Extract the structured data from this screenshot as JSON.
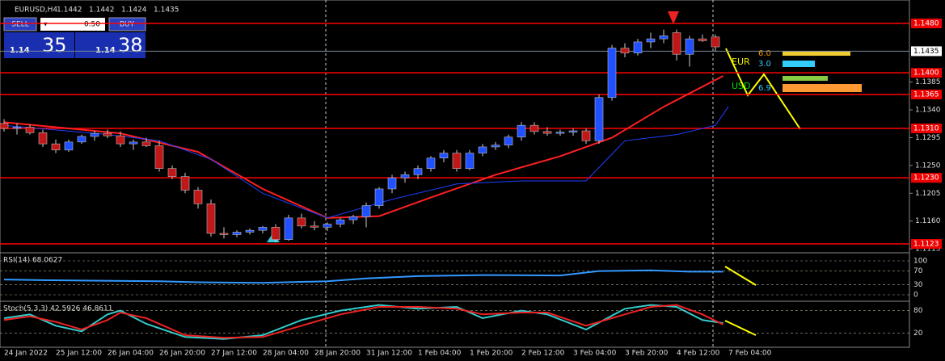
{
  "header": {
    "symbol": "EURUSD,H4",
    "ohlc": [
      1.1442,
      1.1442,
      1.1424,
      1.1435
    ]
  },
  "trade_panel": {
    "sell": "SELL",
    "buy": "BUY",
    "lot": "0.50",
    "bid_big": "1.14",
    "bid_small": "35",
    "ask_big": "1.14",
    "ask_small": "38"
  },
  "strength": {
    "eur": "EUR",
    "usd": "USD",
    "eur_values": [
      "6.0",
      "3.0"
    ],
    "usd_value": "6.9"
  },
  "price_ticks": [
    {
      "value": 1.1385,
      "label": "1.1385"
    },
    {
      "value": 1.134,
      "label": "1.1340"
    },
    {
      "value": 1.1295,
      "label": "1.1295"
    },
    {
      "value": 1.125,
      "label": "1.1250"
    },
    {
      "value": 1.1205,
      "label": "1.1205"
    },
    {
      "value": 1.116,
      "label": "1.1160"
    },
    {
      "value": 1.1115,
      "label": "1.1115"
    }
  ],
  "levels": [
    {
      "value": 1.148,
      "label": "1.1480"
    },
    {
      "value": 1.14,
      "label": "1.1400"
    },
    {
      "value": 1.1365,
      "label": "1.1365"
    },
    {
      "value": 1.131,
      "label": "1.1310"
    },
    {
      "value": 1.123,
      "label": "1.1230"
    },
    {
      "value": 1.1123,
      "label": "1.1123"
    }
  ],
  "current": {
    "value": 1.1435,
    "label": "1.1435"
  },
  "candles": [
    [
      1.1318,
      1.1325,
      1.1305,
      1.131
    ],
    [
      1.131,
      1.1318,
      1.13,
      1.1312
    ],
    [
      1.1312,
      1.1316,
      1.13,
      1.1303
    ],
    [
      1.1303,
      1.1308,
      1.128,
      1.1285
    ],
    [
      1.1285,
      1.1292,
      1.127,
      1.1275
    ],
    [
      1.1275,
      1.1292,
      1.1272,
      1.1288
    ],
    [
      1.1288,
      1.13,
      1.1285,
      1.1297
    ],
    [
      1.1297,
      1.1306,
      1.129,
      1.1302
    ],
    [
      1.1302,
      1.1308,
      1.1294,
      1.1298
    ],
    [
      1.1298,
      1.1305,
      1.128,
      1.1285
    ],
    [
      1.1285,
      1.1292,
      1.1275,
      1.1288
    ],
    [
      1.1288,
      1.1295,
      1.128,
      1.1282
    ],
    [
      1.1282,
      1.129,
      1.124,
      1.1245
    ],
    [
      1.1245,
      1.125,
      1.1228,
      1.1232
    ],
    [
      1.1232,
      1.1238,
      1.1205,
      1.121
    ],
    [
      1.121,
      1.1215,
      1.118,
      1.1188
    ],
    [
      1.1188,
      1.1195,
      1.1135,
      1.114
    ],
    [
      1.114,
      1.115,
      1.1132,
      1.1138
    ],
    [
      1.1138,
      1.1145,
      1.1134,
      1.1142
    ],
    [
      1.1142,
      1.1148,
      1.1138,
      1.1145
    ],
    [
      1.1145,
      1.1152,
      1.114,
      1.115
    ],
    [
      1.115,
      1.1155,
      1.1125,
      1.113
    ],
    [
      1.113,
      1.117,
      1.1128,
      1.1165
    ],
    [
      1.1165,
      1.1172,
      1.1148,
      1.1152
    ],
    [
      1.1152,
      1.116,
      1.1145,
      1.115
    ],
    [
      1.115,
      1.1158,
      1.1144,
      1.1155
    ],
    [
      1.1155,
      1.1165,
      1.115,
      1.1162
    ],
    [
      1.1162,
      1.117,
      1.1155,
      1.1167
    ],
    [
      1.1167,
      1.119,
      1.115,
      1.1185
    ],
    [
      1.1185,
      1.1215,
      1.118,
      1.1212
    ],
    [
      1.1212,
      1.1235,
      1.1205,
      1.123
    ],
    [
      1.123,
      1.124,
      1.1222,
      1.1235
    ],
    [
      1.1235,
      1.125,
      1.1228,
      1.1245
    ],
    [
      1.1245,
      1.1265,
      1.124,
      1.1262
    ],
    [
      1.1262,
      1.1275,
      1.1255,
      1.127
    ],
    [
      1.127,
      1.1275,
      1.124,
      1.1245
    ],
    [
      1.1245,
      1.1275,
      1.1242,
      1.127
    ],
    [
      1.127,
      1.1285,
      1.1265,
      1.128
    ],
    [
      1.128,
      1.1288,
      1.1275,
      1.1283
    ],
    [
      1.1283,
      1.13,
      1.1278,
      1.1296
    ],
    [
      1.1296,
      1.132,
      1.129,
      1.1315
    ],
    [
      1.1315,
      1.132,
      1.13,
      1.1305
    ],
    [
      1.1305,
      1.1312,
      1.1298,
      1.1302
    ],
    [
      1.1302,
      1.1308,
      1.1298,
      1.1304
    ],
    [
      1.1304,
      1.131,
      1.1298,
      1.1306
    ],
    [
      1.1306,
      1.131,
      1.1285,
      1.129
    ],
    [
      1.129,
      1.1365,
      1.1285,
      1.136
    ],
    [
      1.136,
      1.1445,
      1.1355,
      1.144
    ],
    [
      1.144,
      1.1448,
      1.1425,
      1.1432
    ],
    [
      1.1432,
      1.1455,
      1.1428,
      1.145
    ],
    [
      1.145,
      1.1465,
      1.144,
      1.1455
    ],
    [
      1.1455,
      1.147,
      1.1448,
      1.146
    ],
    [
      1.1465,
      1.147,
      1.142,
      1.143
    ],
    [
      1.143,
      1.146,
      1.141,
      1.1455
    ],
    [
      1.1455,
      1.1462,
      1.145,
      1.1452
    ],
    [
      1.1458,
      1.1462,
      1.1435,
      1.1442
    ]
  ],
  "lines": [
    {
      "color": "#ff2020",
      "width": 2,
      "points": [
        [
          0,
          1.132
        ],
        [
          9,
          1.1302
        ],
        [
          15,
          1.1272
        ],
        [
          20,
          1.1212
        ],
        [
          25,
          1.1165
        ],
        [
          29,
          1.1168
        ],
        [
          33,
          1.1198
        ],
        [
          38,
          1.1235
        ],
        [
          43,
          1.1265
        ],
        [
          47,
          1.1295
        ],
        [
          51,
          1.1345
        ],
        [
          55.6,
          1.1395
        ]
      ]
    },
    {
      "color": "#2040ff",
      "width": 1,
      "points": [
        [
          0,
          1.1315
        ],
        [
          8,
          1.13
        ],
        [
          12,
          1.129
        ],
        [
          16,
          1.126
        ],
        [
          20,
          1.1205
        ],
        [
          25,
          1.1165
        ],
        [
          30,
          1.1195
        ],
        [
          35,
          1.122
        ],
        [
          40,
          1.1225
        ],
        [
          45,
          1.1225
        ],
        [
          48,
          1.129
        ],
        [
          52,
          1.13
        ],
        [
          55,
          1.1315
        ],
        [
          56,
          1.1345
        ]
      ]
    }
  ],
  "rsi": {
    "label": "RSI(14) 68.0627",
    "ticks": [
      100,
      70,
      30,
      0
    ],
    "points": [
      [
        0,
        45
      ],
      [
        3,
        43
      ],
      [
        6,
        42
      ],
      [
        12,
        40
      ],
      [
        15,
        37
      ],
      [
        20,
        35
      ],
      [
        25,
        40
      ],
      [
        28,
        48
      ],
      [
        32,
        55
      ],
      [
        37,
        58
      ],
      [
        43,
        57
      ],
      [
        46,
        70
      ],
      [
        50,
        72
      ],
      [
        53,
        68
      ],
      [
        55.6,
        68
      ]
    ]
  },
  "stoch": {
    "label": "Stoch(5,3,3) 42.5926 46.8611",
    "ticks": [
      80,
      20
    ],
    "main": [
      [
        0,
        60
      ],
      [
        2,
        70
      ],
      [
        4,
        40
      ],
      [
        6,
        25
      ],
      [
        8,
        70
      ],
      [
        9,
        80
      ],
      [
        11,
        45
      ],
      [
        14,
        10
      ],
      [
        17,
        5
      ],
      [
        20,
        15
      ],
      [
        23,
        55
      ],
      [
        26,
        80
      ],
      [
        29,
        95
      ],
      [
        32,
        85
      ],
      [
        35,
        90
      ],
      [
        37,
        60
      ],
      [
        40,
        80
      ],
      [
        42,
        70
      ],
      [
        45,
        30
      ],
      [
        48,
        85
      ],
      [
        50,
        95
      ],
      [
        52,
        90
      ],
      [
        54,
        55
      ],
      [
        55.6,
        47
      ]
    ],
    "signal": [
      [
        0,
        55
      ],
      [
        2,
        65
      ],
      [
        4,
        50
      ],
      [
        6,
        30
      ],
      [
        8,
        55
      ],
      [
        9,
        75
      ],
      [
        11,
        60
      ],
      [
        14,
        15
      ],
      [
        17,
        8
      ],
      [
        20,
        10
      ],
      [
        23,
        40
      ],
      [
        26,
        70
      ],
      [
        29,
        90
      ],
      [
        32,
        90
      ],
      [
        35,
        85
      ],
      [
        37,
        70
      ],
      [
        40,
        75
      ],
      [
        42,
        75
      ],
      [
        45,
        40
      ],
      [
        48,
        70
      ],
      [
        50,
        90
      ],
      [
        52,
        95
      ],
      [
        54,
        70
      ],
      [
        55.6,
        43
      ]
    ]
  },
  "time_labels": [
    "24 Jan 2022",
    "25 Jan 12:00",
    "26 Jan 04:00",
    "26 Jan 20:00",
    "27 Jan 12:00",
    "28 Jan 04:00",
    "28 Jan 20:00",
    "31 Jan 12:00",
    "1 Feb 04:00",
    "1 Feb 20:00",
    "2 Feb 12:00",
    "3 Feb 04:00",
    "3 Feb 20:00",
    "4 Feb 12:00",
    "7 Feb 04:00"
  ]
}
